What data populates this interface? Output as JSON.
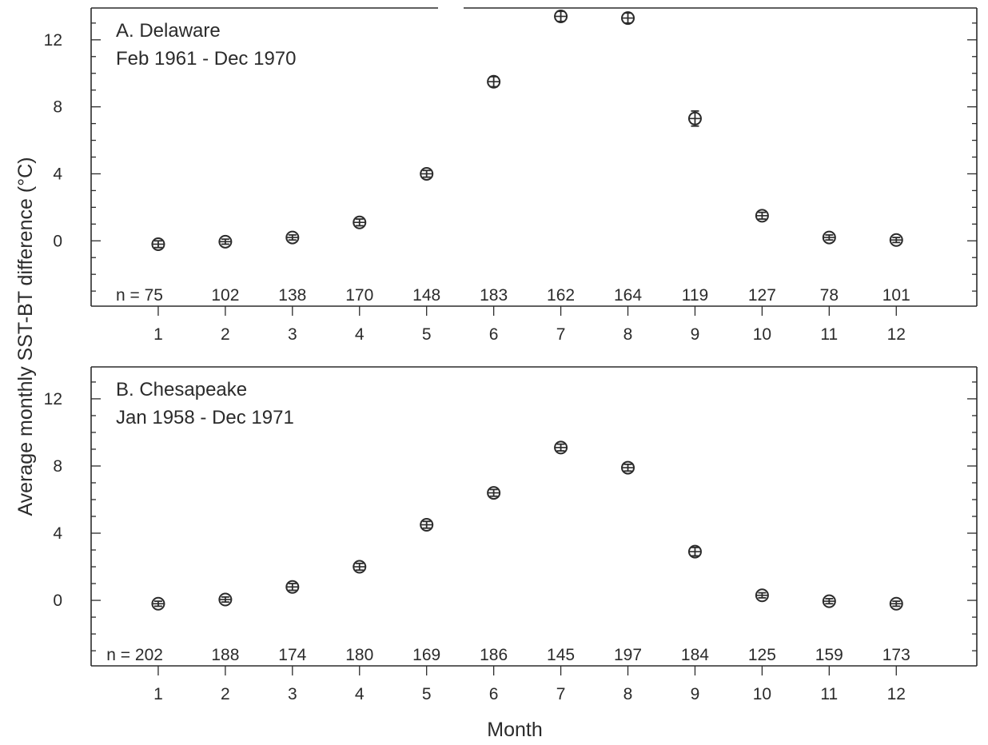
{
  "figure": {
    "ylabel": "Average monthly SST-BT difference (°C)",
    "xlabel": "Month"
  },
  "chart_data": [
    {
      "type": "scatter",
      "title": "A. Delaware",
      "subtitle": "Feb 1961 - Dec 1970",
      "x": [
        1,
        2,
        3,
        4,
        5,
        6,
        7,
        8,
        9,
        10,
        11,
        12
      ],
      "y": [
        -0.2,
        -0.05,
        0.2,
        1.1,
        4.0,
        9.5,
        13.4,
        13.3,
        7.3,
        1.5,
        0.2,
        0.05
      ],
      "error": [
        0.2,
        0.15,
        0.15,
        0.2,
        0.2,
        0.3,
        0.3,
        0.3,
        0.45,
        0.2,
        0.15,
        0.15
      ],
      "n_labels": [
        "n = 75",
        "102",
        "138",
        "170",
        "148",
        "183",
        "162",
        "164",
        "119",
        "127",
        "78",
        "101"
      ],
      "xlim": [
        0,
        13.2
      ],
      "ylim": [
        -3.9,
        13.9
      ],
      "yticks": [
        0,
        4,
        8,
        12
      ],
      "xticks": [
        1,
        2,
        3,
        4,
        5,
        6,
        7,
        8,
        9,
        10,
        11,
        12
      ],
      "grid": false,
      "legend": "none"
    },
    {
      "type": "scatter",
      "title": "B. Chesapeake",
      "subtitle": "Jan 1958 - Dec 1971",
      "x": [
        1,
        2,
        3,
        4,
        5,
        6,
        7,
        8,
        9,
        10,
        11,
        12
      ],
      "y": [
        -0.2,
        0.05,
        0.8,
        2.0,
        4.5,
        6.4,
        9.1,
        7.9,
        2.9,
        0.3,
        -0.05,
        -0.2
      ],
      "error": [
        0.15,
        0.15,
        0.2,
        0.2,
        0.2,
        0.2,
        0.2,
        0.2,
        0.25,
        0.15,
        0.15,
        0.15
      ],
      "n_labels": [
        "n = 202",
        "188",
        "174",
        "180",
        "169",
        "186",
        "145",
        "197",
        "184",
        "125",
        "159",
        "173"
      ],
      "xlim": [
        0,
        13.2
      ],
      "ylim": [
        -3.9,
        13.9
      ],
      "yticks": [
        0,
        4,
        8,
        12
      ],
      "xticks": [
        1,
        2,
        3,
        4,
        5,
        6,
        7,
        8,
        9,
        10,
        11,
        12
      ],
      "grid": false,
      "legend": "none"
    }
  ]
}
